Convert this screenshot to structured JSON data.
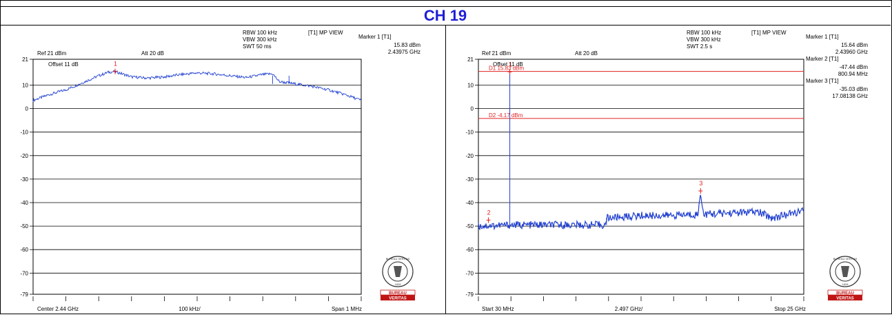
{
  "header": {
    "title": "CH 19"
  },
  "chart_data": [
    {
      "type": "line",
      "info": {
        "rbw": "RBW 100 kHz",
        "vbw": "VBW 300 kHz",
        "swt": "SWT 50 ms",
        "view": "[T1] MP VIEW",
        "ref": "Ref 21 dBm",
        "att": "Att  20 dB",
        "offset": "Offset 11 dB"
      },
      "markers": [
        {
          "label": "Marker 1 [T1]",
          "level": "15.83 dBm",
          "freq": "2.43975 GHz",
          "x": 2.43975,
          "y": 15.83,
          "symbol": "1"
        }
      ],
      "lines": [],
      "x_range": [
        2.4395,
        2.4405
      ],
      "ylim": [
        -79,
        21
      ],
      "ytick_labels": [
        "21",
        "10",
        "0",
        "-10",
        "-20",
        "-30",
        "-40",
        "-50",
        "-60",
        "-70",
        "-79"
      ],
      "yticks": [
        21,
        10,
        0,
        -10,
        -20,
        -30,
        -40,
        -50,
        -60,
        -70,
        -79
      ],
      "bottom_labels": [
        "Center 2.44 GHz",
        "100 kHz/",
        "Span 1 MHz"
      ],
      "series": [
        {
          "color": "#1f3fd0",
          "x": [
            2.4395,
            2.43955,
            2.4396,
            2.43965,
            2.4397,
            2.43973,
            2.43975,
            2.4398,
            2.43985,
            2.4399,
            2.43995,
            2.44,
            2.44005,
            2.4401,
            2.44015,
            2.4402,
            2.44023,
            2.44025,
            2.4403,
            2.44035,
            2.4404,
            2.44045,
            2.4405
          ],
          "y": [
            3.5,
            6,
            8,
            11,
            14,
            15.5,
            15.8,
            13.5,
            13,
            13.5,
            14.5,
            15.2,
            14.8,
            14,
            13.2,
            14.5,
            14.8,
            11.5,
            10.5,
            9.5,
            8,
            6,
            3.5
          ]
        }
      ]
    },
    {
      "type": "line",
      "info": {
        "rbw": "RBW 100 kHz",
        "vbw": "VBW 300 kHz",
        "swt": "SWT 2.5 s",
        "view": "[T1] MP VIEW",
        "ref": "Ref 21 dBm",
        "att": "Att  20 dB",
        "offset": "Offset 11 dB"
      },
      "markers": [
        {
          "label": "Marker 1 [T1]",
          "level": "15.64 dBm",
          "freq": "2.43960 GHz",
          "x": 2.4396,
          "y": 15.64,
          "symbol": "1"
        },
        {
          "label": "Marker 2 [T1]",
          "level": "-47.44 dBm",
          "freq": "800.94 MHz",
          "x": 0.80094,
          "y": -47.44,
          "symbol": "2"
        },
        {
          "label": "Marker 3 [T1]",
          "level": "-35.03 dBm",
          "freq": "17.08138 GHz",
          "x": 17.08138,
          "y": -35.03,
          "symbol": "3"
        }
      ],
      "lines": [
        {
          "label": "D1 15.83 dBm",
          "y": 15.83
        },
        {
          "label": "D2 -4.17 dBm",
          "y": -4.17
        }
      ],
      "x_range": [
        0.03,
        25
      ],
      "ylim": [
        -79,
        21
      ],
      "ytick_labels": [
        "21",
        "10",
        "0",
        "-10",
        "-20",
        "-30",
        "-40",
        "-50",
        "-60",
        "-70",
        "-79"
      ],
      "yticks": [
        21,
        10,
        0,
        -10,
        -20,
        -30,
        -40,
        -50,
        -60,
        -70,
        -79
      ],
      "bottom_labels": [
        "Start 30 MHz",
        "2.497 GHz/",
        "Stop 25 GHz"
      ],
      "series": [
        {
          "color": "#1f3fd0",
          "x": [
            0.03,
            2.43,
            2.4396,
            2.45,
            9.8,
            9.85,
            9.86,
            11.5,
            12.6,
            14.3,
            16.9,
            17.08,
            17.3,
            19,
            21.5,
            22.6,
            25
          ],
          "y": [
            -50,
            -49.5,
            15.64,
            -49.5,
            -49.5,
            -49.5,
            -46.5,
            -46,
            -45.5,
            -45.5,
            -45,
            -35.03,
            -45,
            -44.5,
            -44,
            -46.5,
            -43.5
          ]
        }
      ]
    }
  ],
  "logo": {
    "top_text": "BUREAU VERITAS",
    "year": "1828",
    "name_line1": "BUREAU",
    "name_line2": "VERITAS"
  }
}
